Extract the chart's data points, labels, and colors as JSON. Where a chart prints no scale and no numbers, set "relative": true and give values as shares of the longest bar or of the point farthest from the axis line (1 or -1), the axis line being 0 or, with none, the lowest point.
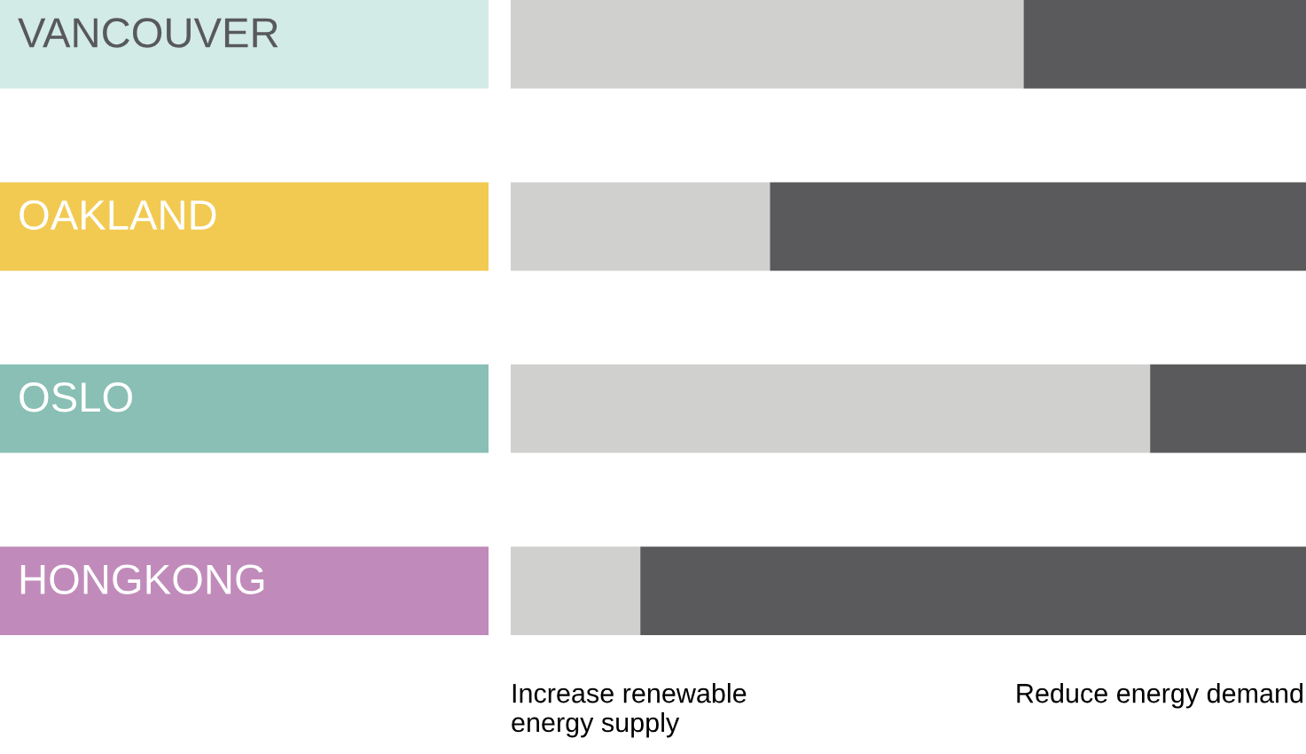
{
  "chart_data": {
    "type": "bar",
    "orientation": "horizontal",
    "stacked": true,
    "relative": true,
    "legend": "bottom",
    "categories": [
      "VANCOUVER",
      "OAKLAND",
      "OSLO",
      "HONGKONG"
    ],
    "series": [
      {
        "name": "Increase renewable\nenergy supply",
        "color": "#d0d0ce",
        "values": [
          0.645,
          0.326,
          0.804,
          0.163
        ]
      },
      {
        "name": "Reduce energy demand",
        "color": "#5a5a5c",
        "values": [
          0.355,
          0.674,
          0.196,
          0.837
        ]
      }
    ]
  }
}
